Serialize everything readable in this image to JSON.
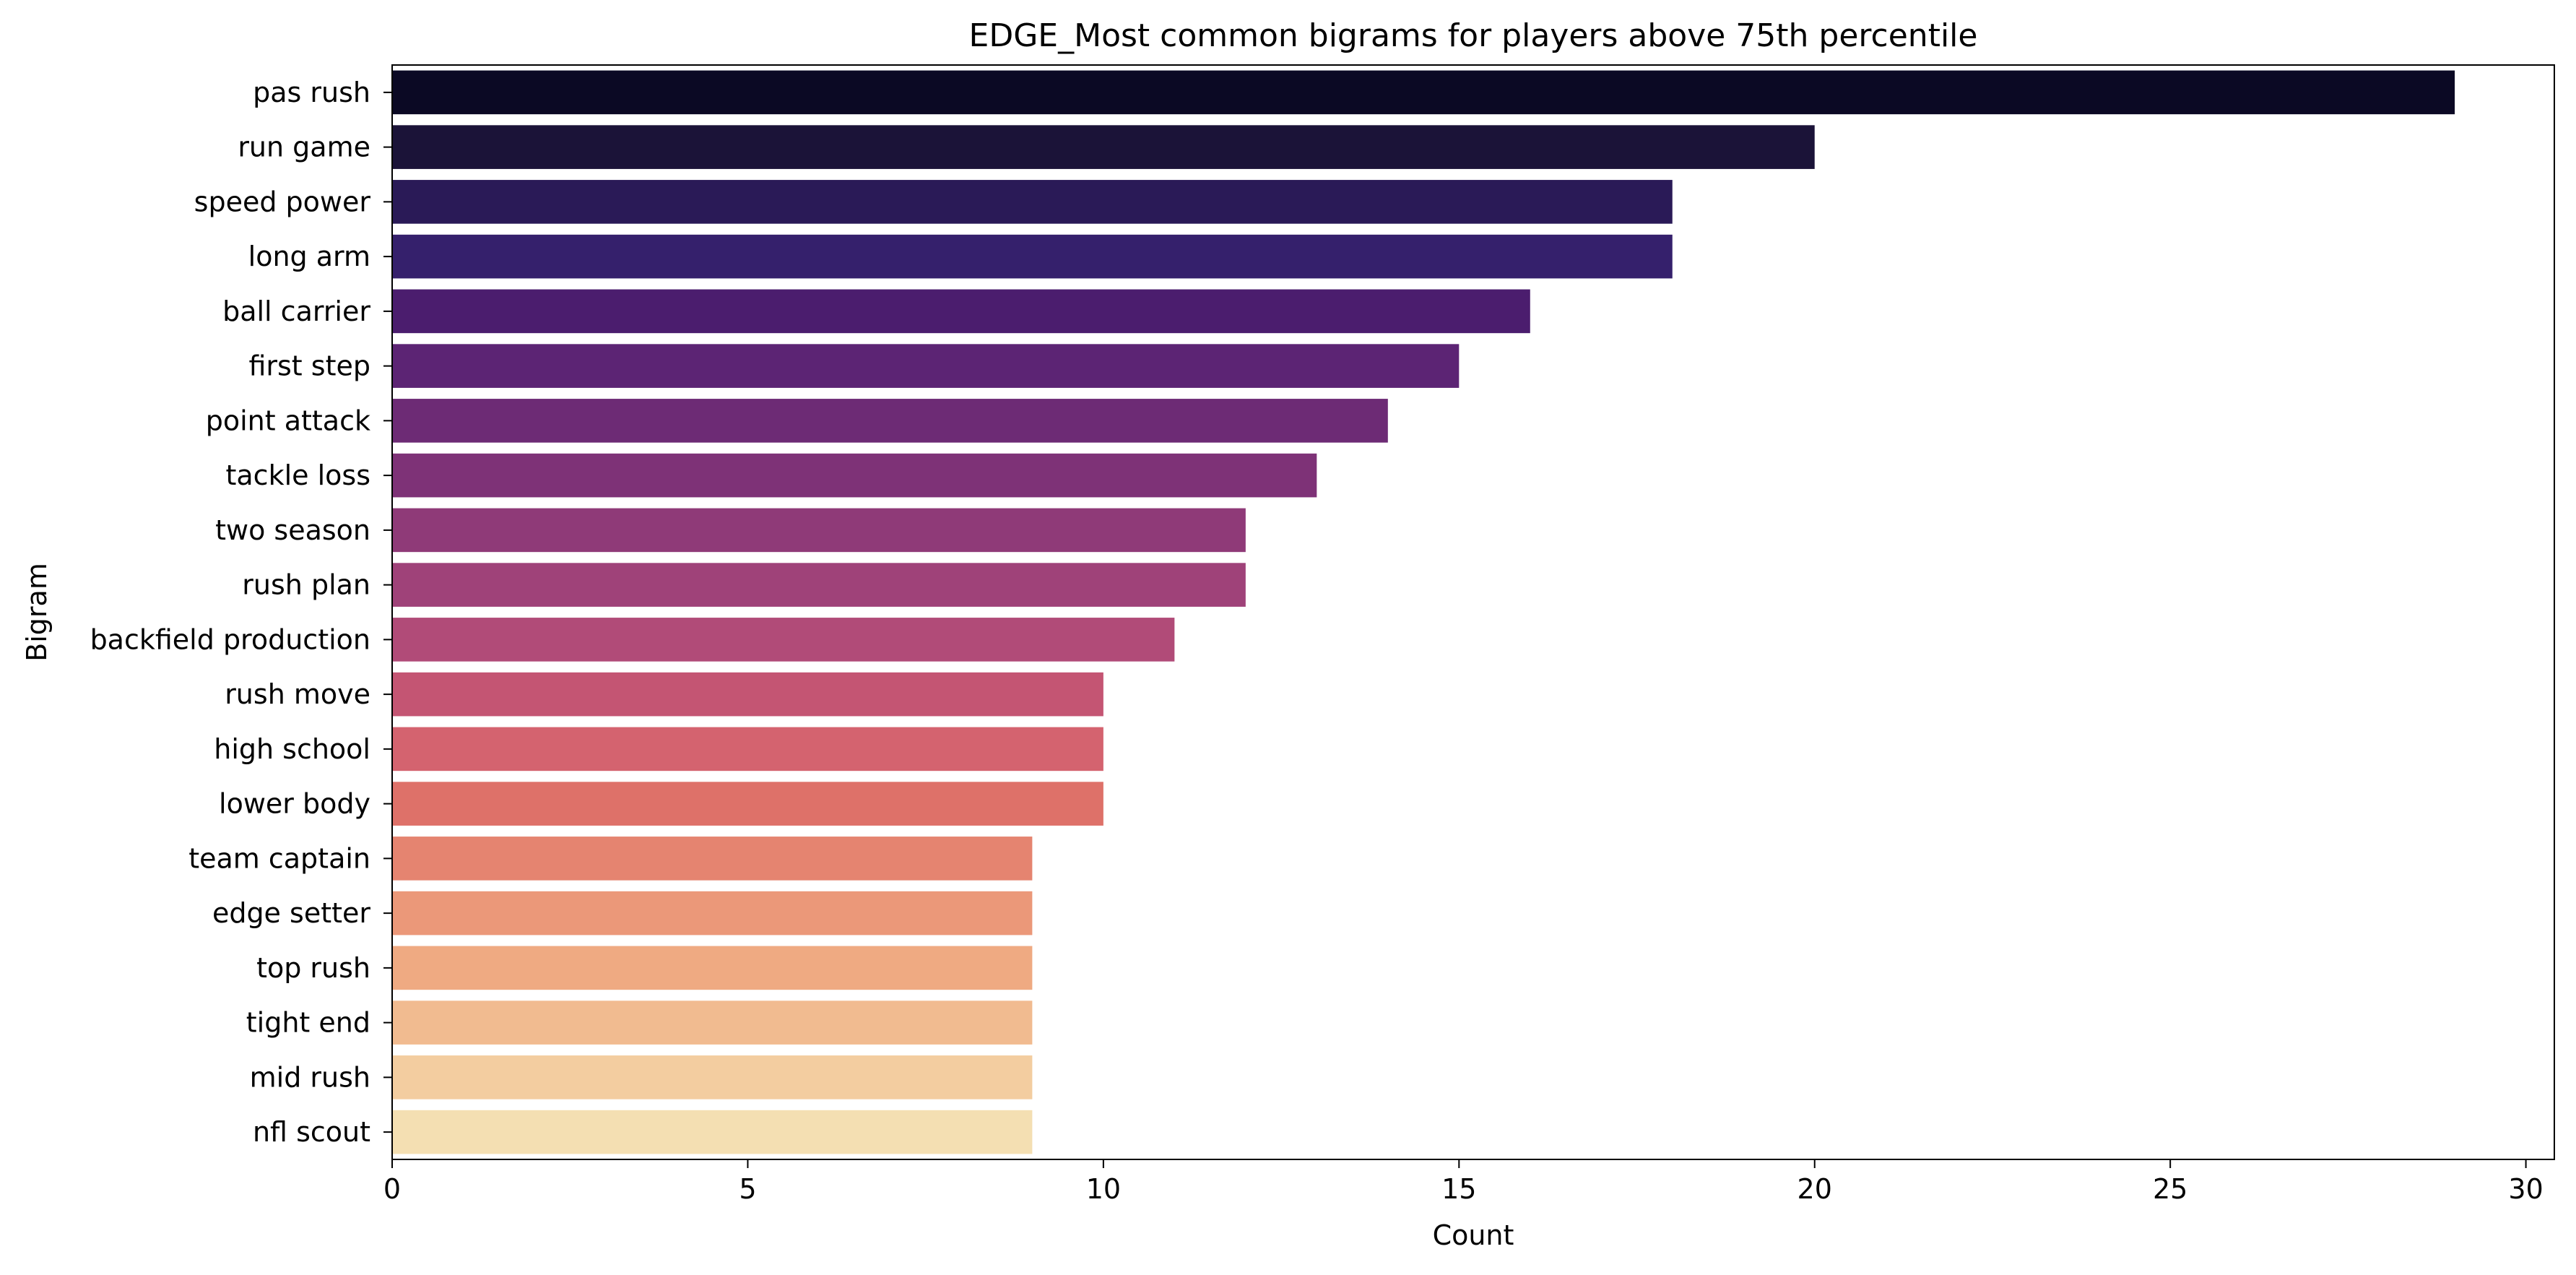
{
  "chart_data": {
    "type": "bar",
    "orientation": "horizontal",
    "title": "EDGE_Most common bigrams for players above 75th percentile",
    "xlabel": "Count",
    "ylabel": "Bigram",
    "xlim": [
      0,
      30.4
    ],
    "xticks": [
      0,
      5,
      10,
      15,
      20,
      25,
      30
    ],
    "grid": false,
    "legend": "none",
    "categories": [
      "pas rush",
      "run game",
      "speed power",
      "long arm",
      "ball carrier",
      "first step",
      "point attack",
      "tackle loss",
      "two season",
      "rush plan",
      "backfield production",
      "rush move",
      "high school",
      "lower body",
      "team captain",
      "edge setter",
      "top rush",
      "tight end",
      "mid rush",
      "nfl scout"
    ],
    "values": [
      29,
      20,
      18,
      18,
      16,
      15,
      14,
      13,
      12,
      12,
      11,
      10,
      10,
      10,
      9,
      9,
      9,
      9,
      9,
      9
    ],
    "colors": [
      "#0b0924",
      "#1b1338",
      "#2a1a57",
      "#35206c",
      "#4b1d6e",
      "#5c2474",
      "#6d2b75",
      "#7e3277",
      "#8f3a78",
      "#9f4279",
      "#b14b78",
      "#c45573",
      "#d4636f",
      "#de7169",
      "#e58470",
      "#eb9879",
      "#efaa82",
      "#f1bb90",
      "#f3cda0",
      "#f4dfb2"
    ]
  }
}
